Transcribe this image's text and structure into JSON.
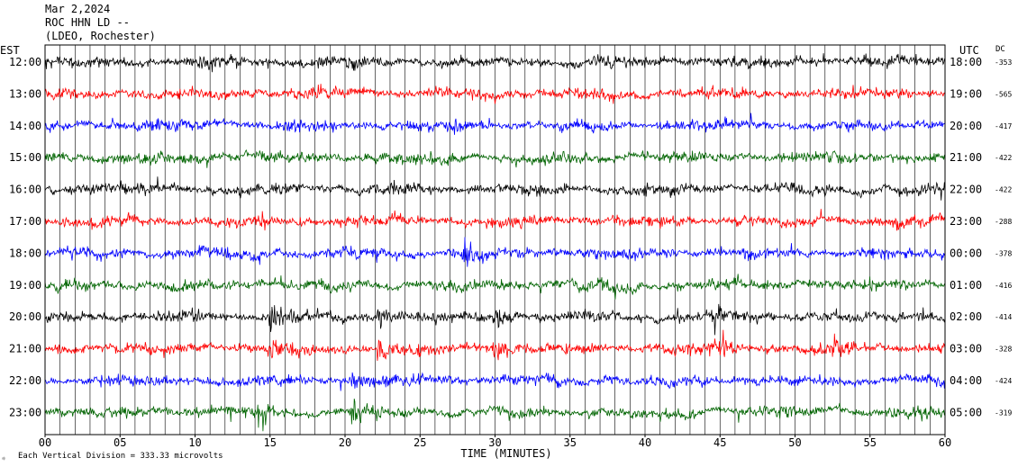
{
  "header": {
    "date": "Mar 2,2024",
    "station": "ROC HHN LD --",
    "network": "(LDEO, Rochester)"
  },
  "left_axis_label": "EST",
  "right_axis_label": "UTC",
  "dc_label": "DC",
  "footer": {
    "scale_note": "Each Vertical Division =  333.33 microvolts"
  },
  "colors": {
    "trace_cycle": [
      "#000000",
      "#ff0000",
      "#0000ff",
      "#006400"
    ],
    "background": "#ffffff",
    "gridlines": "#000000"
  },
  "chart_data": {
    "type": "line",
    "title": "ROC HHN LD --",
    "subtitle": "(LDEO, Rochester)",
    "date": "Mar 2,2024",
    "xlabel": "TIME (MINUTES)",
    "xlim": [
      0,
      60
    ],
    "x_ticks": [
      "00",
      "05",
      "10",
      "15",
      "20",
      "25",
      "30",
      "35",
      "40",
      "45",
      "50",
      "55",
      "60"
    ],
    "vertical_grid_every_minutes": 1,
    "scale_microvolts_per_division": 333.33,
    "rows": [
      {
        "est": "12:00",
        "utc": "18:00",
        "dc": "-353",
        "color": "#000000"
      },
      {
        "est": "13:00",
        "utc": "19:00",
        "dc": "-565",
        "color": "#ff0000"
      },
      {
        "est": "14:00",
        "utc": "20:00",
        "dc": "-417",
        "color": "#0000ff"
      },
      {
        "est": "15:00",
        "utc": "21:00",
        "dc": "-422",
        "color": "#006400"
      },
      {
        "est": "16:00",
        "utc": "22:00",
        "dc": "-422",
        "color": "#000000"
      },
      {
        "est": "17:00",
        "utc": "23:00",
        "dc": "-288",
        "color": "#ff0000"
      },
      {
        "est": "18:00",
        "utc": "00:00",
        "dc": "-378",
        "color": "#0000ff"
      },
      {
        "est": "19:00",
        "utc": "01:00",
        "dc": "-416",
        "color": "#006400"
      },
      {
        "est": "20:00",
        "utc": "02:00",
        "dc": "-414",
        "color": "#000000"
      },
      {
        "est": "21:00",
        "utc": "03:00",
        "dc": "-328",
        "color": "#ff0000"
      },
      {
        "est": "22:00",
        "utc": "04:00",
        "dc": "-424",
        "color": "#0000ff"
      },
      {
        "est": "23:00",
        "utc": "05:00",
        "dc": "-319",
        "color": "#006400"
      }
    ],
    "events": [
      {
        "minute": 15.0,
        "hour_rows": [
          "20:00",
          "21:00"
        ]
      },
      {
        "minute": 22.3,
        "hour_rows": [
          "20:00",
          "21:00"
        ]
      },
      {
        "minute": 30.0,
        "hour_rows": [
          "20:00",
          "21:00"
        ]
      },
      {
        "minute": 44.8,
        "hour_rows": [
          "20:00",
          "21:00"
        ]
      },
      {
        "minute": 52.7,
        "hour_rows": [
          "21:00"
        ]
      },
      {
        "minute": 14.3,
        "hour_rows": [
          "23:00"
        ]
      },
      {
        "minute": 20.5,
        "hour_rows": [
          "22:00",
          "23:00"
        ]
      },
      {
        "minute": 28.0,
        "hour_rows": [
          "18:00"
        ]
      }
    ]
  }
}
